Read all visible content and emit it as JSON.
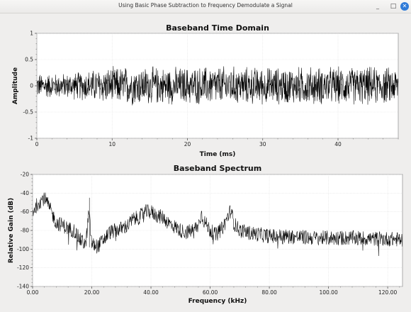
{
  "window": {
    "title": "Using Basic Phase Subtraction to Frequency Demodulate a Signal",
    "minimize_label": "_",
    "maximize_label": "□",
    "close_label": "✕",
    "accent_color": "#2f7bd8"
  },
  "chart_data": [
    {
      "type": "line",
      "title": "Baseband Time Domain",
      "xlabel": "Time (ms)",
      "ylabel": "Amplitude",
      "xlim": [
        0,
        48
      ],
      "ylim": [
        -1,
        1
      ],
      "xticks": [
        0,
        10,
        20,
        30,
        40
      ],
      "yticks": [
        -1,
        -0.5,
        0,
        0.5,
        1
      ],
      "xtick_labels": [
        "0",
        "10",
        "20",
        "30",
        "40"
      ],
      "ytick_labels": [
        "-1",
        "-0.5",
        "0",
        "0.5",
        "1"
      ],
      "grid": true,
      "series": [
        {
          "color": "#000000",
          "description_points": {
            "x": [
              0,
              4,
              8,
              12,
              16,
              20,
              24,
              28,
              32,
              36,
              40,
              44,
              48
            ],
            "envelope": [
              0.22,
              0.22,
              0.3,
              0.35,
              0.33,
              0.33,
              0.35,
              0.33,
              0.33,
              0.34,
              0.33,
              0.34,
              0.32
            ]
          }
        }
      ]
    },
    {
      "type": "line",
      "title": "Baseband Spectrum",
      "xlabel": "Frequency (kHz)",
      "ylabel": "Relative Gain (dB)",
      "xlim": [
        0,
        125
      ],
      "ylim": [
        -140,
        -20
      ],
      "xticks": [
        0,
        20,
        40,
        60,
        80,
        100,
        120
      ],
      "yticks": [
        -140,
        -120,
        -100,
        -80,
        -60,
        -40,
        -20
      ],
      "xtick_labels": [
        "0.00",
        "20.00",
        "40.00",
        "60.00",
        "80.00",
        "100.00",
        "120.00"
      ],
      "ytick_labels": [
        "-140",
        "-120",
        "-100",
        "-80",
        "-60",
        "-40",
        "-20"
      ],
      "grid": true,
      "series": [
        {
          "color": "#000000",
          "x": [
            0,
            2,
            4,
            6,
            8,
            10,
            12,
            14,
            16,
            18,
            19,
            20,
            22,
            24,
            26,
            28,
            30,
            32,
            34,
            36,
            38,
            40,
            42,
            44,
            46,
            48,
            50,
            52,
            54,
            56,
            57,
            58,
            60,
            62,
            64,
            65,
            66,
            67,
            68,
            70,
            72,
            74,
            76,
            78,
            80,
            85,
            90,
            95,
            100,
            105,
            110,
            115,
            120,
            125
          ],
          "y": [
            -60,
            -50,
            -45,
            -58,
            -72,
            -74,
            -78,
            -80,
            -90,
            -95,
            -60,
            -95,
            -97,
            -90,
            -82,
            -80,
            -78,
            -75,
            -68,
            -66,
            -60,
            -60,
            -64,
            -66,
            -72,
            -76,
            -80,
            -82,
            -80,
            -75,
            -62,
            -70,
            -80,
            -85,
            -78,
            -72,
            -65,
            -58,
            -72,
            -80,
            -82,
            -83,
            -84,
            -85,
            -86,
            -86,
            -87,
            -88,
            -88,
            -88,
            -88,
            -89,
            -89,
            -90
          ]
        }
      ]
    }
  ]
}
